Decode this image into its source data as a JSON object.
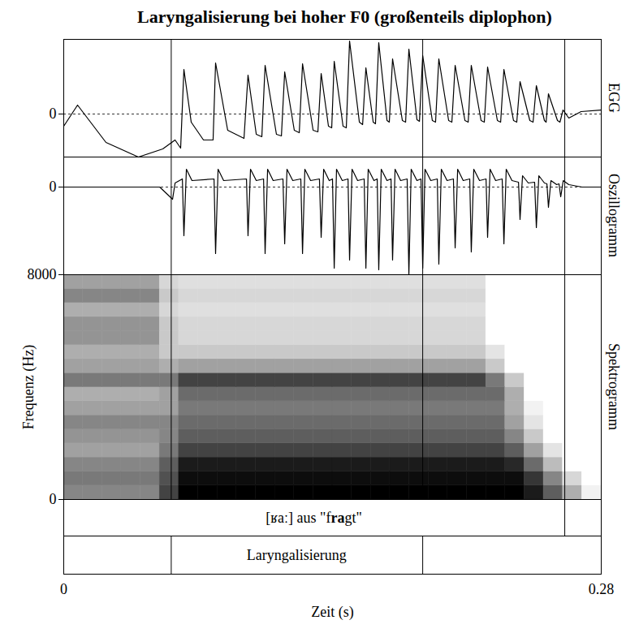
{
  "chart_data": {
    "type": "multi_panel",
    "title": "Laryngalisierung bei hoher F0 (großenteils diplophon)",
    "xlim": [
      0,
      0.28
    ],
    "xticks": [
      0,
      0.28
    ],
    "x_label": "Zeit (s)",
    "panels": [
      {
        "type": "line",
        "name": "EGG",
        "ylim": [
          -0.53,
          0.92
        ],
        "yticks": [
          0
        ],
        "x": [
          0,
          0.0072,
          0.022,
          0.0389,
          0.0516,
          0.058,
          0.0609,
          0.0626,
          0.0664,
          0.0728,
          0.0778,
          0.0791,
          0.0854,
          0.0939,
          0.096,
          0.1003,
          0.1032,
          0.1049,
          0.1108,
          0.1134,
          0.1151,
          0.1201,
          0.1227,
          0.1244,
          0.1299,
          0.1324,
          0.1341,
          0.1379,
          0.1396,
          0.1409,
          0.1455,
          0.1472,
          0.1489,
          0.154,
          0.1557,
          0.1574,
          0.1612,
          0.1624,
          0.1641,
          0.1684,
          0.1696,
          0.1713,
          0.1764,
          0.1781,
          0.1798,
          0.184,
          0.1853,
          0.187,
          0.192,
          0.1937,
          0.1954,
          0.2005,
          0.2022,
          0.2039,
          0.209,
          0.2107,
          0.2123,
          0.2174,
          0.2191,
          0.2208,
          0.2259,
          0.2276,
          0.2293,
          0.2343,
          0.236,
          0.2377,
          0.2428,
          0.2445,
          0.2462,
          0.2504,
          0.2513,
          0.2525,
          0.2572,
          0.2585,
          0.2601,
          0.2631,
          0.2695,
          0.28
        ],
        "values": [
          -0.15,
          0.11,
          -0.35,
          -0.53,
          -0.43,
          -0.32,
          -0.42,
          0.55,
          -0.1,
          -0.32,
          -0.32,
          0.63,
          -0.2,
          -0.3,
          0.48,
          -0.25,
          -0.28,
          0.6,
          -0.25,
          -0.27,
          0.52,
          -0.2,
          -0.23,
          0.62,
          -0.2,
          -0.22,
          0.5,
          -0.15,
          -0.17,
          0.65,
          -0.15,
          -0.17,
          0.9,
          -0.1,
          -0.13,
          0.57,
          -0.1,
          -0.12,
          0.88,
          -0.08,
          -0.1,
          0.68,
          -0.08,
          -0.1,
          0.8,
          -0.07,
          -0.09,
          0.72,
          -0.08,
          -0.1,
          0.68,
          -0.08,
          -0.1,
          0.6,
          -0.08,
          -0.1,
          0.6,
          -0.08,
          -0.1,
          0.58,
          -0.08,
          -0.1,
          0.55,
          -0.08,
          -0.1,
          0.4,
          -0.08,
          -0.1,
          0.35,
          -0.08,
          -0.1,
          0.25,
          -0.08,
          -0.1,
          0.05,
          -0.05,
          0.03,
          0.05
        ]
      },
      {
        "type": "line",
        "name": "Oszillogramm",
        "ylim": [
          -1.08,
          0.37
        ],
        "yticks": [
          0
        ],
        "x": [
          0,
          0.05,
          0.0567,
          0.058,
          0.0618,
          0.0626,
          0.0639,
          0.0668,
          0.0783,
          0.0791,
          0.0804,
          0.0833,
          0.0952,
          0.096,
          0.0973,
          0.1003,
          0.1041,
          0.1049,
          0.1062,
          0.1091,
          0.1142,
          0.1151,
          0.1163,
          0.1193,
          0.1235,
          0.1244,
          0.1256,
          0.1286,
          0.1332,
          0.1341,
          0.1354,
          0.1383,
          0.14,
          0.1409,
          0.1421,
          0.1451,
          0.1481,
          0.1489,
          0.1502,
          0.1531,
          0.1565,
          0.1574,
          0.1586,
          0.1616,
          0.1633,
          0.1641,
          0.1654,
          0.1684,
          0.1705,
          0.1713,
          0.1726,
          0.1755,
          0.1789,
          0.1798,
          0.181,
          0.184,
          0.1861,
          0.187,
          0.1882,
          0.1912,
          0.1946,
          0.1954,
          0.1967,
          0.1997,
          0.203,
          0.2039,
          0.2052,
          0.2081,
          0.2115,
          0.2123,
          0.2136,
          0.2166,
          0.22,
          0.2208,
          0.2221,
          0.225,
          0.2284,
          0.2293,
          0.2305,
          0.2335,
          0.2369,
          0.2377,
          0.239,
          0.242,
          0.2453,
          0.2462,
          0.2475,
          0.2504,
          0.2517,
          0.2525,
          0.2538,
          0.2568,
          0.258,
          0.2589,
          0.2602,
          0.2631,
          0.27,
          0.28
        ],
        "values": [
          0,
          0,
          -0.15,
          0.05,
          0.1,
          -0.6,
          0.22,
          0.08,
          0.1,
          -0.82,
          0.22,
          0.08,
          0.1,
          -0.6,
          0.22,
          0.08,
          0.1,
          -0.82,
          0.22,
          0.08,
          0.1,
          -0.7,
          0.22,
          0.08,
          0.1,
          -0.82,
          0.22,
          0.08,
          0.1,
          -0.62,
          0.22,
          0.08,
          0.1,
          -1.0,
          0.22,
          0.08,
          0.1,
          -0.9,
          0.22,
          0.08,
          0.1,
          -1.0,
          0.22,
          0.08,
          0.1,
          -1.02,
          0.22,
          0.08,
          0.1,
          -0.9,
          0.22,
          0.08,
          0.1,
          -1.08,
          0.22,
          0.08,
          0.1,
          -1.0,
          0.22,
          0.08,
          0.1,
          -0.95,
          0.22,
          0.08,
          0.1,
          -0.75,
          0.22,
          0.08,
          0.1,
          -0.8,
          0.22,
          0.08,
          0.1,
          -0.62,
          0.22,
          0.08,
          0.1,
          -0.7,
          0.22,
          0.08,
          0.06,
          -0.4,
          0.14,
          0.05,
          0.06,
          -0.5,
          0.14,
          0.05,
          0.04,
          -0.25,
          0.08,
          0.03,
          0.04,
          -0.12,
          0.08,
          0.03,
          0,
          0
        ]
      },
      {
        "type": "heatmap",
        "name": "Spektrogramm",
        "y_label": "Frequenz (Hz)",
        "ylim": [
          0,
          8000
        ],
        "yticks": [
          0,
          8000
        ],
        "time_edges": [
          0,
          0.01,
          0.02,
          0.03,
          0.04,
          0.05,
          0.06,
          0.07,
          0.08,
          0.09,
          0.1,
          0.11,
          0.12,
          0.13,
          0.14,
          0.15,
          0.16,
          0.17,
          0.18,
          0.19,
          0.2,
          0.21,
          0.22,
          0.23,
          0.24,
          0.25,
          0.26,
          0.27,
          0.28
        ],
        "freq_edges": [
          0,
          500,
          1000,
          1500,
          2000,
          2500,
          3000,
          3500,
          4000,
          4500,
          5000,
          5500,
          6000,
          6500,
          7000,
          7500,
          8000
        ],
        "cells": [
          [
            0.45,
            0.45,
            0.45,
            0.45,
            0.45,
            0.7,
            0.95,
            0.95,
            0.95,
            0.95,
            0.95,
            0.95,
            0.95,
            0.95,
            0.95,
            0.95,
            0.95,
            0.95,
            0.95,
            0.95,
            0.95,
            0.95,
            0.95,
            0.95,
            0.85,
            0.6,
            0.3,
            0.05
          ],
          [
            0.5,
            0.5,
            0.5,
            0.5,
            0.5,
            0.65,
            0.9,
            0.9,
            0.9,
            0.9,
            0.9,
            0.9,
            0.9,
            0.9,
            0.9,
            0.9,
            0.9,
            0.9,
            0.9,
            0.9,
            0.9,
            0.9,
            0.9,
            0.9,
            0.75,
            0.45,
            0.15,
            0
          ],
          [
            0.45,
            0.45,
            0.45,
            0.45,
            0.45,
            0.6,
            0.85,
            0.85,
            0.85,
            0.85,
            0.85,
            0.85,
            0.85,
            0.85,
            0.85,
            0.85,
            0.85,
            0.85,
            0.85,
            0.85,
            0.85,
            0.85,
            0.85,
            0.8,
            0.55,
            0.25,
            0,
            0
          ],
          [
            0.35,
            0.35,
            0.35,
            0.35,
            0.35,
            0.5,
            0.7,
            0.7,
            0.7,
            0.7,
            0.7,
            0.7,
            0.7,
            0.7,
            0.7,
            0.7,
            0.7,
            0.7,
            0.7,
            0.7,
            0.7,
            0.7,
            0.7,
            0.6,
            0.35,
            0.1,
            0,
            0
          ],
          [
            0.4,
            0.4,
            0.4,
            0.4,
            0.4,
            0.45,
            0.6,
            0.6,
            0.6,
            0.6,
            0.6,
            0.6,
            0.6,
            0.6,
            0.6,
            0.6,
            0.6,
            0.6,
            0.6,
            0.6,
            0.6,
            0.6,
            0.6,
            0.45,
            0.2,
            0,
            0,
            0
          ],
          [
            0.45,
            0.45,
            0.45,
            0.45,
            0.45,
            0.45,
            0.55,
            0.55,
            0.55,
            0.55,
            0.55,
            0.55,
            0.55,
            0.55,
            0.55,
            0.55,
            0.55,
            0.55,
            0.55,
            0.55,
            0.55,
            0.55,
            0.55,
            0.35,
            0.1,
            0,
            0,
            0
          ],
          [
            0.35,
            0.35,
            0.35,
            0.35,
            0.35,
            0.35,
            0.5,
            0.5,
            0.5,
            0.5,
            0.5,
            0.5,
            0.5,
            0.5,
            0.5,
            0.5,
            0.5,
            0.5,
            0.5,
            0.5,
            0.5,
            0.5,
            0.5,
            0.3,
            0.05,
            0,
            0,
            0
          ],
          [
            0.3,
            0.3,
            0.3,
            0.3,
            0.3,
            0.35,
            0.55,
            0.55,
            0.55,
            0.55,
            0.55,
            0.55,
            0.55,
            0.55,
            0.55,
            0.55,
            0.55,
            0.55,
            0.55,
            0.55,
            0.55,
            0.55,
            0.55,
            0.3,
            0,
            0,
            0,
            0
          ],
          [
            0.5,
            0.5,
            0.5,
            0.5,
            0.5,
            0.5,
            0.7,
            0.7,
            0.7,
            0.7,
            0.7,
            0.7,
            0.7,
            0.7,
            0.7,
            0.7,
            0.7,
            0.7,
            0.7,
            0.7,
            0.7,
            0.7,
            0.5,
            0.2,
            0,
            0,
            0,
            0
          ],
          [
            0.35,
            0.35,
            0.35,
            0.35,
            0.35,
            0.3,
            0.35,
            0.35,
            0.35,
            0.35,
            0.35,
            0.35,
            0.35,
            0.35,
            0.35,
            0.35,
            0.35,
            0.35,
            0.35,
            0.35,
            0.35,
            0.35,
            0.2,
            0,
            0,
            0,
            0,
            0
          ],
          [
            0.3,
            0.3,
            0.3,
            0.3,
            0.3,
            0.2,
            0.2,
            0.2,
            0.2,
            0.2,
            0.2,
            0.2,
            0.2,
            0.2,
            0.2,
            0.2,
            0.2,
            0.2,
            0.2,
            0.2,
            0.2,
            0.2,
            0.1,
            0,
            0,
            0,
            0,
            0
          ],
          [
            0.4,
            0.4,
            0.4,
            0.4,
            0.4,
            0.2,
            0.15,
            0.15,
            0.15,
            0.15,
            0.15,
            0.15,
            0.15,
            0.15,
            0.15,
            0.15,
            0.15,
            0.15,
            0.15,
            0.15,
            0.15,
            0.15,
            0,
            0,
            0,
            0,
            0,
            0
          ],
          [
            0.4,
            0.4,
            0.4,
            0.4,
            0.4,
            0.2,
            0.15,
            0.15,
            0.15,
            0.15,
            0.15,
            0.15,
            0.15,
            0.15,
            0.15,
            0.15,
            0.15,
            0.15,
            0.15,
            0.15,
            0.15,
            0.15,
            0,
            0,
            0,
            0,
            0,
            0
          ],
          [
            0.3,
            0.3,
            0.3,
            0.3,
            0.3,
            0.15,
            0.12,
            0.12,
            0.12,
            0.12,
            0.12,
            0.12,
            0.12,
            0.12,
            0.12,
            0.12,
            0.12,
            0.12,
            0.12,
            0.12,
            0.12,
            0.12,
            0,
            0,
            0,
            0,
            0,
            0
          ],
          [
            0.45,
            0.45,
            0.45,
            0.45,
            0.45,
            0.2,
            0.15,
            0.15,
            0.15,
            0.15,
            0.15,
            0.15,
            0.15,
            0.15,
            0.15,
            0.15,
            0.15,
            0.15,
            0.15,
            0.15,
            0.15,
            0.15,
            0,
            0,
            0,
            0,
            0,
            0
          ],
          [
            0.35,
            0.35,
            0.35,
            0.35,
            0.35,
            0.15,
            0.12,
            0.12,
            0.12,
            0.12,
            0.12,
            0.12,
            0.12,
            0.12,
            0.12,
            0.12,
            0.12,
            0.12,
            0.12,
            0.12,
            0.12,
            0.12,
            0,
            0,
            0,
            0,
            0,
            0
          ]
        ]
      }
    ],
    "tiers": [
      {
        "boundaries": [
          0.261
        ],
        "intervals": [
          {
            "start": 0,
            "end": 0.261,
            "label": [
              "[ʁaː] aus \"f",
              "ra",
              "gt\""
            ]
          }
        ]
      },
      {
        "boundaries": [
          0.056,
          0.187
        ],
        "intervals": [
          {
            "start": 0.056,
            "end": 0.187,
            "label": [
              "Laryngalisierung"
            ]
          }
        ]
      }
    ]
  }
}
